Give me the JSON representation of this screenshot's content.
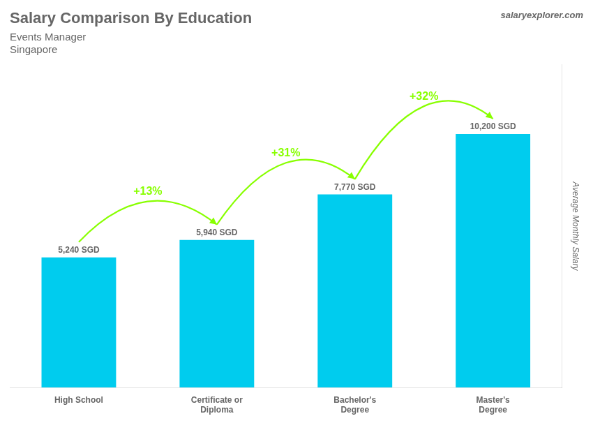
{
  "chart_data": {
    "type": "bar",
    "title": "Salary Comparison By Education",
    "subtitle": [
      "Events Manager",
      "Singapore"
    ],
    "source": "salaryexplorer.com",
    "y_label": "Average Monthly Salary",
    "categories": [
      "High School",
      "Certificate or\nDiploma",
      "Bachelor's\nDegree",
      "Master's\nDegree"
    ],
    "values": [
      5240,
      5940,
      7770,
      10200
    ],
    "value_labels": [
      "5,240 SGD",
      "5,940 SGD",
      "7,770 SGD",
      "10,200 SGD"
    ],
    "data_labels": true,
    "color": "#00ccee",
    "ylim": [
      0,
      13000
    ],
    "grid": false,
    "tick_labels": "x",
    "annotations": [
      {
        "text": "+13%",
        "color": "#88ff00"
      },
      {
        "text": "+31%",
        "color": "#88ff00"
      },
      {
        "text": "+32%",
        "color": "#88ff00"
      }
    ]
  }
}
